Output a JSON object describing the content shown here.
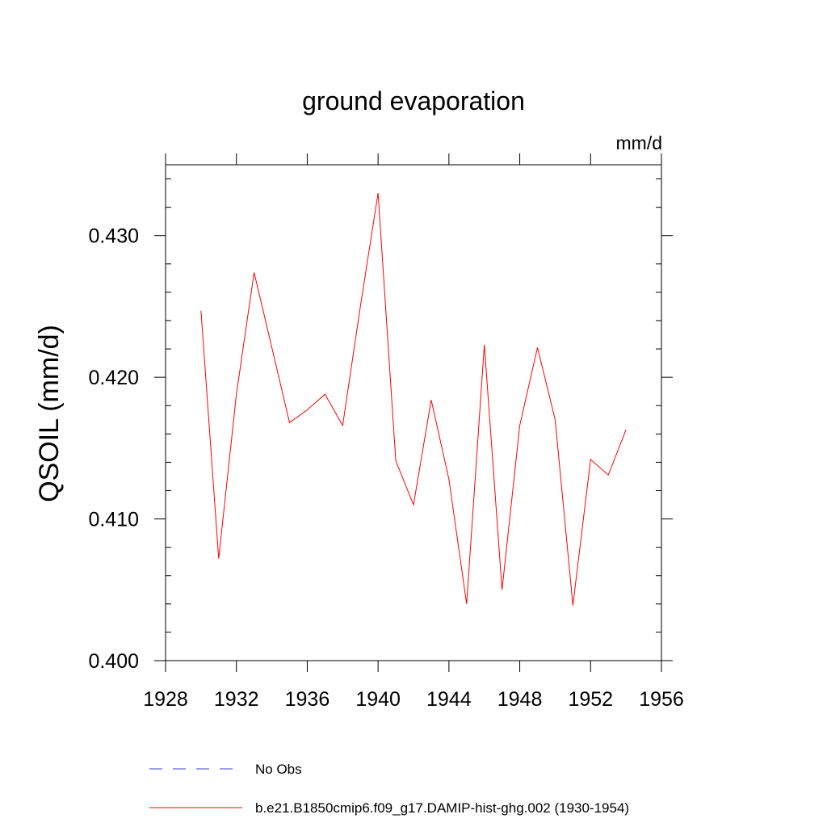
{
  "chart_data": {
    "type": "line",
    "title": "ground evaporation",
    "units_label": "mm/d",
    "ylabel": "QSOIL  (mm/d)",
    "xlabel": "",
    "xlim": [
      1928,
      1956
    ],
    "ylim": [
      0.4,
      0.435
    ],
    "x_ticks": [
      1928,
      1932,
      1936,
      1940,
      1944,
      1948,
      1952,
      1956
    ],
    "x_tick_labels": [
      "1928",
      "1932",
      "1936",
      "1940",
      "1944",
      "1948",
      "1952",
      "1956"
    ],
    "y_ticks": [
      0.4,
      0.41,
      0.42,
      0.43
    ],
    "y_tick_labels": [
      "0.400",
      "0.410",
      "0.420",
      "0.430"
    ],
    "grid": false,
    "legend_placement": "bottom",
    "series": [
      {
        "name": "b.e21.B1850cmip6.f09_g17.DAMIP-hist-ghg.002 (1930-1954)",
        "color": "#ff0000",
        "style": "solid",
        "x": [
          1930,
          1931,
          1932,
          1933,
          1934,
          1935,
          1936,
          1937,
          1938,
          1939,
          1940,
          1941,
          1942,
          1943,
          1944,
          1945,
          1946,
          1947,
          1948,
          1949,
          1950,
          1951,
          1952,
          1953,
          1954
        ],
        "y": [
          0.4247,
          0.4072,
          0.4188,
          0.4274,
          0.4221,
          0.4168,
          0.4177,
          0.4188,
          0.4166,
          0.425,
          0.433,
          0.4141,
          0.411,
          0.4184,
          0.4128,
          0.404,
          0.4223,
          0.405,
          0.4166,
          0.4221,
          0.417,
          0.4039,
          0.4142,
          0.4131,
          0.4163
        ]
      }
    ],
    "legend": [
      {
        "label": "No Obs",
        "color": "#3c3cc8",
        "style": "dashed"
      },
      {
        "label": "b.e21.B1850cmip6.f09_g17.DAMIP-hist-ghg.002 (1930-1954)",
        "color": "#ff0000",
        "style": "solid"
      }
    ]
  }
}
